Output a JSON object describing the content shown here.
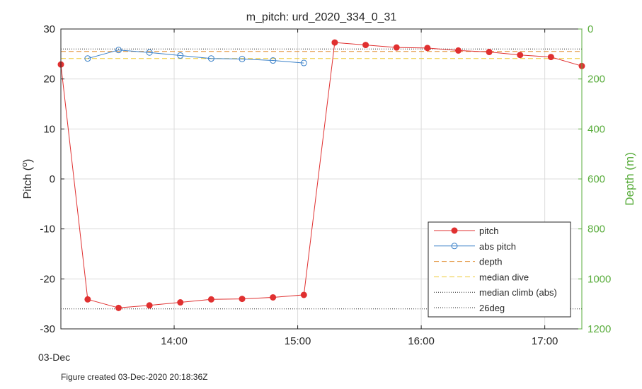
{
  "chart_data": {
    "type": "line",
    "title": "m_pitch: urd_2020_334_0_31",
    "ylabel": "Pitch (",
    "ylabel_sup": "o",
    "ylabel_close": ")",
    "y2label": "Depth (m)",
    "date_label": "03-Dec",
    "footer": "Figure created 03-Dec-2020 20:18:36Z",
    "xlim_hours": [
      13.083,
      17.3
    ],
    "ylim": [
      -30,
      30
    ],
    "y2lim": [
      1200,
      0
    ],
    "x_ticks": [
      {
        "value": 14.0,
        "label": "14:00"
      },
      {
        "value": 15.0,
        "label": "15:00"
      },
      {
        "value": 16.0,
        "label": "16:00"
      },
      {
        "value": 17.0,
        "label": "17:00"
      }
    ],
    "y_ticks": [
      {
        "value": 30,
        "label": "30"
      },
      {
        "value": 20,
        "label": "20"
      },
      {
        "value": 10,
        "label": "10"
      },
      {
        "value": 0,
        "label": "0"
      },
      {
        "value": -10,
        "label": "-10"
      },
      {
        "value": -20,
        "label": "-20"
      },
      {
        "value": -30,
        "label": "-30"
      }
    ],
    "y2_ticks": [
      {
        "value": 0,
        "label": "0"
      },
      {
        "value": 200,
        "label": "200"
      },
      {
        "value": 400,
        "label": "400"
      },
      {
        "value": 600,
        "label": "600"
      },
      {
        "value": 800,
        "label": "800"
      },
      {
        "value": 1000,
        "label": "1000"
      },
      {
        "value": 1200,
        "label": "1200"
      }
    ],
    "grid": true,
    "legend_position": "bottom-right",
    "series": [
      {
        "name": "pitch",
        "color": "#e03030",
        "style": "line-filled-marker",
        "x": [
          13.083,
          13.3,
          13.55,
          13.8,
          14.05,
          14.3,
          14.55,
          14.8,
          15.05,
          15.3,
          15.55,
          15.8,
          16.05,
          16.3,
          16.55,
          16.8,
          17.05,
          17.3
        ],
        "y": [
          22.9,
          -24.1,
          -25.8,
          -25.3,
          -24.7,
          -24.1,
          -24.0,
          -23.7,
          -23.2,
          27.3,
          26.8,
          26.3,
          26.2,
          25.7,
          25.4,
          24.8,
          24.4,
          22.6
        ]
      },
      {
        "name": "abs pitch",
        "color": "#3a80c8",
        "style": "line-open-marker",
        "x": [
          13.3,
          13.55,
          13.8,
          14.05,
          14.3,
          14.55,
          14.8,
          15.05
        ],
        "y": [
          24.1,
          25.8,
          25.3,
          24.7,
          24.1,
          24.0,
          23.7,
          23.2
        ]
      },
      {
        "name": "depth",
        "color": "#e08a2a",
        "style": "hline-dashed",
        "y": 25.5
      },
      {
        "name": "median dive",
        "color": "#edc830",
        "style": "hline-dashed",
        "y": 24.1
      },
      {
        "name": "median climb (abs)",
        "color": "#262626",
        "style": "hline-dotted",
        "y": 26.0
      },
      {
        "name": "26deg",
        "color": "#262626",
        "style": "hline-dotted",
        "y": -26.0
      }
    ]
  }
}
